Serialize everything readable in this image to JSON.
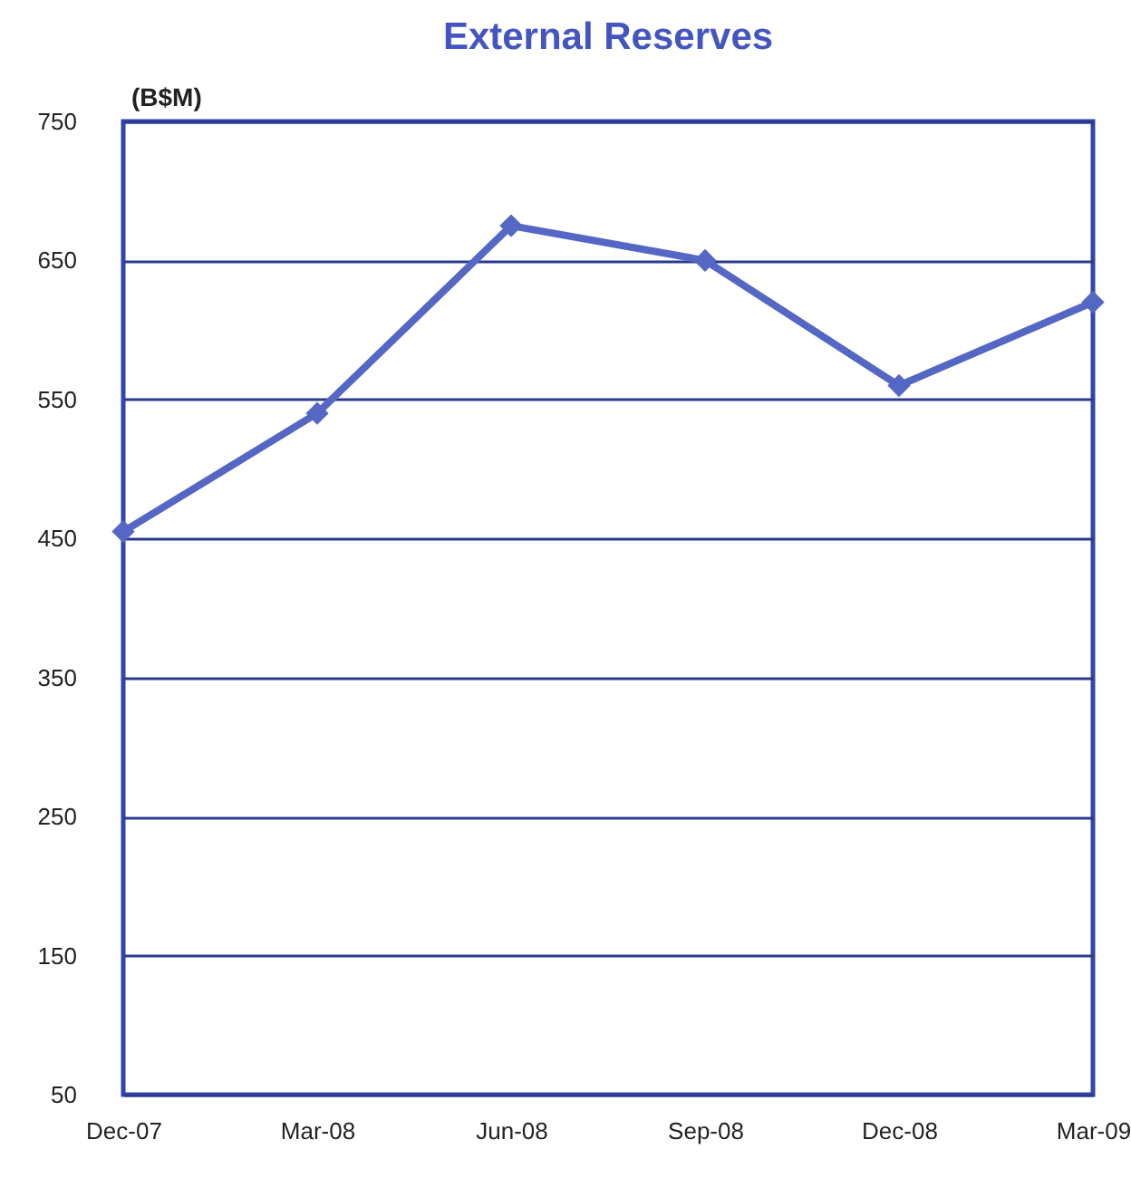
{
  "chart_data": {
    "type": "line",
    "title": "External Reserves",
    "ylabel": "(B$M)",
    "categories": [
      "Dec-07",
      "Mar-08",
      "Jun-08",
      "Sep-08",
      "Dec-08",
      "Mar-09"
    ],
    "series": [
      {
        "color": "#5567c4",
        "values": [
          455,
          540,
          675,
          650,
          560,
          620
        ]
      }
    ],
    "ylim": [
      50,
      750
    ],
    "yticks": [
      50,
      150,
      250,
      350,
      450,
      550,
      650,
      750
    ],
    "grid": "y",
    "marker": "diamond",
    "line_style": "solid"
  }
}
